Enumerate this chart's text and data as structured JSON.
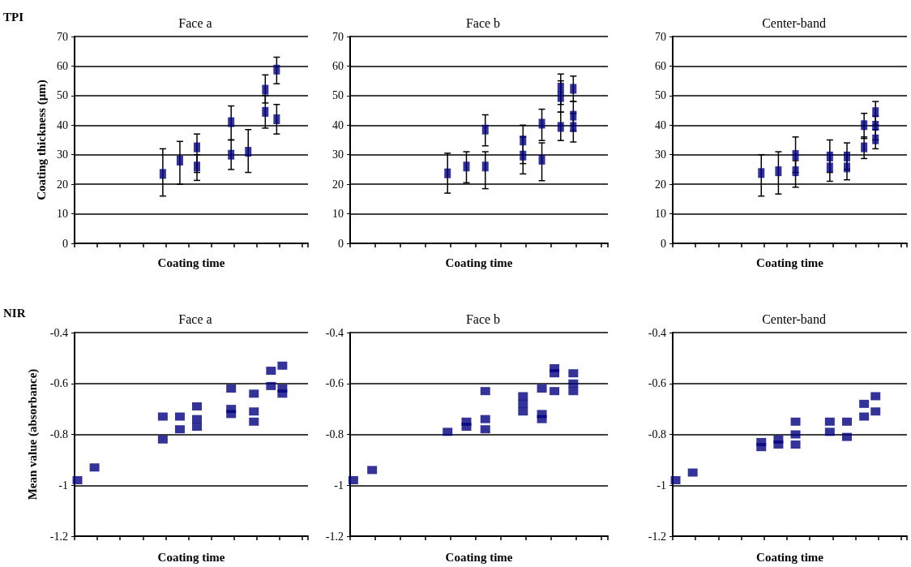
{
  "chart_data": [
    {
      "type": "scatter",
      "title": "Face a",
      "xlabel": "Coating time",
      "ylabel": "Coating thickness (µm)",
      "annotations": [
        "TPI"
      ],
      "marker": "square",
      "grid": "y",
      "ylim": [
        0,
        70
      ],
      "yticks": [
        0,
        10,
        20,
        30,
        40,
        50,
        60,
        70
      ],
      "categories": [
        null,
        null,
        null,
        null,
        null,
        null,
        null,
        null,
        null,
        null,
        null,
        null,
        null,
        null,
        null,
        null,
        null,
        null,
        null,
        null,
        null,
        null,
        null,
        null,
        null,
        null,
        null,
        null,
        null,
        null,
        null,
        null,
        null,
        null,
        null,
        null,
        null,
        null,
        null,
        null,
        null
      ],
      "series": [
        {
          "color": "#00007f",
          "values": [
            null,
            null,
            null,
            null,
            null,
            null,
            null,
            null,
            null,
            null,
            null,
            null,
            null,
            null,
            null,
            23.5,
            null,
            null,
            28,
            null,
            null,
            32.5,
            null,
            null,
            null,
            null,
            null,
            41,
            null,
            null,
            31,
            null,
            null,
            52,
            null,
            58.8,
            null,
            null,
            null,
            null,
            null
          ],
          "errors": [
            null,
            null,
            null,
            null,
            null,
            null,
            null,
            null,
            null,
            null,
            null,
            null,
            null,
            null,
            null,
            [
              16,
              32
            ],
            null,
            null,
            [
              20,
              34.5
            ],
            null,
            null,
            [
              24,
              37
            ],
            null,
            null,
            null,
            null,
            null,
            [
              35,
              46.5
            ],
            null,
            null,
            [
              24,
              38.5
            ],
            null,
            null,
            [
              47.5,
              57
            ],
            null,
            [
              54,
              63
            ],
            null,
            null,
            null,
            null,
            null
          ]
        },
        {
          "color": "#00007f",
          "values": [
            null,
            null,
            null,
            null,
            null,
            null,
            null,
            null,
            null,
            null,
            null,
            null,
            null,
            null,
            null,
            null,
            null,
            null,
            null,
            null,
            null,
            26,
            null,
            null,
            null,
            null,
            null,
            30,
            null,
            null,
            null,
            null,
            null,
            44.5,
            null,
            42,
            null,
            null,
            null,
            null,
            null
          ],
          "errors": [
            null,
            null,
            null,
            null,
            null,
            null,
            null,
            null,
            null,
            null,
            null,
            null,
            null,
            null,
            null,
            null,
            null,
            null,
            null,
            null,
            null,
            [
              21.3,
              30
            ],
            null,
            null,
            null,
            null,
            null,
            [
              25,
              35
            ],
            null,
            null,
            null,
            null,
            null,
            [
              39,
              50
            ],
            null,
            [
              37,
              47
            ],
            null,
            null,
            null,
            null,
            null
          ]
        }
      ]
    },
    {
      "type": "scatter",
      "title": "Face b",
      "xlabel": "Coating time",
      "marker": "square",
      "grid": "y",
      "ylim": [
        0,
        70
      ],
      "yticks": [
        0,
        10,
        20,
        30,
        40,
        50,
        60,
        70
      ],
      "categories": [
        null,
        null,
        null,
        null,
        null,
        null,
        null,
        null,
        null,
        null,
        null,
        null,
        null,
        null,
        null,
        null,
        null,
        null,
        null,
        null,
        null,
        null,
        null,
        null,
        null,
        null,
        null,
        null,
        null,
        null,
        null,
        null,
        null,
        null,
        null,
        null,
        null,
        null,
        null,
        null,
        null
      ],
      "series": [
        {
          "color": "#00007f",
          "values": [
            null,
            null,
            null,
            null,
            null,
            null,
            null,
            null,
            null,
            null,
            null,
            null,
            null,
            null,
            null,
            23.7,
            null,
            null,
            26,
            null,
            null,
            38.5,
            null,
            null,
            null,
            null,
            null,
            34.8,
            null,
            null,
            40.5,
            null,
            null,
            52.7,
            null,
            52.3,
            null,
            null,
            null,
            null,
            null
          ],
          "errors": [
            null,
            null,
            null,
            null,
            null,
            null,
            null,
            null,
            null,
            null,
            null,
            null,
            null,
            null,
            null,
            [
              17,
              30.5
            ],
            null,
            null,
            [
              20.5,
              31
            ],
            null,
            null,
            [
              33,
              43.5
            ],
            null,
            null,
            null,
            null,
            null,
            [
              27,
              40
            ],
            null,
            null,
            [
              34.8,
              45.4
            ],
            null,
            null,
            [
              47,
              57.3
            ],
            null,
            [
              48,
              56.6
            ],
            null,
            null,
            null,
            null,
            null
          ]
        },
        {
          "color": "#00007f",
          "values": [
            null,
            null,
            null,
            null,
            null,
            null,
            null,
            null,
            null,
            null,
            null,
            null,
            null,
            null,
            null,
            null,
            null,
            null,
            null,
            null,
            null,
            26,
            null,
            null,
            null,
            null,
            null,
            29.7,
            null,
            null,
            28.3,
            null,
            null,
            49.5,
            null,
            43.2,
            null,
            null,
            null,
            null,
            null
          ],
          "errors": [
            null,
            null,
            null,
            null,
            null,
            null,
            null,
            null,
            null,
            null,
            null,
            null,
            null,
            null,
            null,
            null,
            null,
            null,
            null,
            null,
            null,
            [
              18.5,
              31
            ],
            null,
            null,
            null,
            null,
            null,
            [
              23.5,
              36
            ],
            null,
            null,
            [
              21.2,
              34
            ],
            null,
            null,
            [
              44.4,
              55
            ],
            null,
            [
              38,
              48
            ],
            null,
            null,
            null,
            null,
            null
          ]
        },
        {
          "color": "#00007f",
          "values": [
            null,
            null,
            null,
            null,
            null,
            null,
            null,
            null,
            null,
            null,
            null,
            null,
            null,
            null,
            null,
            null,
            null,
            null,
            null,
            null,
            null,
            null,
            null,
            null,
            null,
            null,
            null,
            null,
            null,
            null,
            null,
            null,
            null,
            39.4,
            null,
            39.4,
            null,
            null,
            null,
            null,
            null
          ],
          "errors": [
            null,
            null,
            null,
            null,
            null,
            null,
            null,
            null,
            null,
            null,
            null,
            null,
            null,
            null,
            null,
            null,
            null,
            null,
            null,
            null,
            null,
            null,
            null,
            null,
            null,
            null,
            null,
            null,
            null,
            null,
            null,
            null,
            null,
            [
              34.8,
              44.4
            ],
            null,
            [
              34.3,
              44
            ],
            null,
            null,
            null,
            null,
            null
          ]
        }
      ]
    },
    {
      "type": "scatter",
      "title": "Center-band",
      "xlabel": "Coating time",
      "marker": "square",
      "grid": "y",
      "ylim": [
        0,
        70
      ],
      "yticks": [
        0,
        10,
        20,
        30,
        40,
        50,
        60,
        70
      ],
      "categories": [
        null,
        null,
        null,
        null,
        null,
        null,
        null,
        null,
        null,
        null,
        null,
        null,
        null,
        null,
        null,
        null,
        null,
        null,
        null,
        null,
        null,
        null,
        null,
        null,
        null,
        null,
        null,
        null,
        null,
        null,
        null,
        null,
        null,
        null,
        null,
        null,
        null,
        null,
        null,
        null,
        null
      ],
      "series": [
        {
          "color": "#00007f",
          "values": [
            null,
            null,
            null,
            null,
            null,
            null,
            null,
            null,
            null,
            null,
            null,
            null,
            null,
            null,
            null,
            23.8,
            null,
            null,
            24.4,
            null,
            null,
            29.9,
            null,
            null,
            null,
            null,
            null,
            29.4,
            null,
            null,
            29.4,
            null,
            null,
            40,
            null,
            44.4,
            null,
            null,
            null,
            null,
            null
          ],
          "errors": [
            null,
            null,
            null,
            null,
            null,
            null,
            null,
            null,
            null,
            null,
            null,
            null,
            null,
            null,
            null,
            [
              16,
              30
            ],
            null,
            null,
            [
              16.7,
              31
            ],
            null,
            null,
            [
              24,
              36
            ],
            null,
            null,
            null,
            null,
            null,
            [
              24,
              35
            ],
            null,
            null,
            [
              25,
              34
            ],
            null,
            null,
            [
              35.5,
              44
            ],
            null,
            [
              40,
              48
            ],
            null,
            null,
            null,
            null,
            null
          ]
        },
        {
          "color": "#00007f",
          "values": [
            null,
            null,
            null,
            null,
            null,
            null,
            null,
            null,
            null,
            null,
            null,
            null,
            null,
            null,
            null,
            null,
            null,
            null,
            null,
            null,
            null,
            24.4,
            null,
            null,
            null,
            null,
            null,
            25.7,
            null,
            null,
            25.7,
            null,
            null,
            32.5,
            null,
            39.8,
            null,
            null,
            null,
            null,
            null
          ],
          "errors": [
            null,
            null,
            null,
            null,
            null,
            null,
            null,
            null,
            null,
            null,
            null,
            null,
            null,
            null,
            null,
            null,
            null,
            null,
            null,
            null,
            null,
            [
              19,
              28
            ],
            null,
            null,
            null,
            null,
            null,
            [
              21,
              30
            ],
            null,
            null,
            [
              21.5,
              30
            ],
            null,
            null,
            [
              28.7,
              36
            ],
            null,
            [
              35,
              43
            ],
            null,
            null,
            null,
            null,
            null
          ]
        },
        {
          "color": "#00007f",
          "values": [
            null,
            null,
            null,
            null,
            null,
            null,
            null,
            null,
            null,
            null,
            null,
            null,
            null,
            null,
            null,
            null,
            null,
            null,
            null,
            null,
            null,
            null,
            null,
            null,
            null,
            null,
            null,
            null,
            null,
            null,
            null,
            null,
            null,
            null,
            null,
            35.2,
            null,
            null,
            null,
            null,
            null
          ],
          "errors": [
            null,
            null,
            null,
            null,
            null,
            null,
            null,
            null,
            null,
            null,
            null,
            null,
            null,
            null,
            null,
            null,
            null,
            null,
            null,
            null,
            null,
            null,
            null,
            null,
            null,
            null,
            null,
            null,
            null,
            null,
            null,
            null,
            null,
            null,
            null,
            [
              32,
              38.5
            ],
            null,
            null,
            null,
            null,
            null
          ]
        }
      ]
    },
    {
      "type": "scatter",
      "title": "Face a",
      "xlabel": "Coating time",
      "ylabel": "Mean value (absorbance)",
      "annotations": [
        "NIR"
      ],
      "marker": "square",
      "grid": "y",
      "ylim": [
        -1.2,
        -0.4
      ],
      "yticks": [
        -1.2,
        -1,
        -0.8,
        -0.6,
        -0.4
      ],
      "categories": [
        null,
        null,
        null,
        null,
        null,
        null,
        null,
        null,
        null,
        null,
        null,
        null,
        null,
        null,
        null,
        null,
        null,
        null,
        null,
        null,
        null,
        null,
        null,
        null,
        null,
        null,
        null,
        null,
        null,
        null,
        null,
        null,
        null,
        null,
        null,
        null,
        null,
        null,
        null,
        null,
        null
      ],
      "series": [
        {
          "color": "#00007f",
          "values": [
            -0.98,
            null,
            null,
            -0.93,
            null,
            null,
            null,
            null,
            null,
            null,
            null,
            null,
            null,
            null,
            null,
            -0.73,
            null,
            null,
            -0.73,
            null,
            null,
            -0.69,
            null,
            null,
            null,
            null,
            null,
            -0.62,
            null,
            null,
            null,
            -0.64,
            null,
            null,
            -0.55,
            null,
            -0.53,
            null,
            null,
            null,
            null
          ]
        },
        {
          "color": "#00007f",
          "values": [
            null,
            null,
            null,
            null,
            null,
            null,
            null,
            null,
            null,
            null,
            null,
            null,
            null,
            null,
            null,
            -0.82,
            null,
            null,
            -0.78,
            null,
            null,
            -0.74,
            null,
            null,
            null,
            null,
            null,
            -0.7,
            null,
            null,
            null,
            -0.71,
            null,
            null,
            -0.61,
            null,
            -0.62,
            null,
            null,
            null,
            null
          ]
        },
        {
          "color": "#00007f",
          "values": [
            null,
            null,
            null,
            null,
            null,
            null,
            null,
            null,
            null,
            null,
            null,
            null,
            null,
            null,
            null,
            null,
            null,
            null,
            null,
            null,
            null,
            -0.77,
            null,
            null,
            null,
            null,
            null,
            -0.72,
            null,
            null,
            null,
            -0.75,
            null,
            null,
            null,
            null,
            -0.64,
            null,
            null,
            null,
            null
          ]
        }
      ]
    },
    {
      "type": "scatter",
      "title": "Face b",
      "xlabel": "Coating time",
      "marker": "square",
      "grid": "y",
      "ylim": [
        -1.2,
        -0.4
      ],
      "yticks": [
        -1.2,
        -1,
        -0.8,
        -0.6,
        -0.4
      ],
      "categories": [
        null,
        null,
        null,
        null,
        null,
        null,
        null,
        null,
        null,
        null,
        null,
        null,
        null,
        null,
        null,
        null,
        null,
        null,
        null,
        null,
        null,
        null,
        null,
        null,
        null,
        null,
        null,
        null,
        null,
        null,
        null,
        null,
        null,
        null,
        null,
        null,
        null,
        null,
        null,
        null,
        null
      ],
      "series": [
        {
          "color": "#00007f",
          "values": [
            -0.98,
            null,
            null,
            -0.94,
            null,
            null,
            null,
            null,
            null,
            null,
            null,
            null,
            null,
            null,
            null,
            -0.79,
            null,
            null,
            -0.75,
            null,
            null,
            -0.63,
            null,
            null,
            null,
            null,
            null,
            -0.65,
            null,
            null,
            -0.62,
            null,
            -0.54,
            null,
            null,
            -0.56,
            null,
            null,
            null,
            null,
            null
          ]
        },
        {
          "color": "#00007f",
          "values": [
            null,
            null,
            null,
            null,
            null,
            null,
            null,
            null,
            null,
            null,
            null,
            null,
            null,
            null,
            null,
            null,
            null,
            null,
            -0.77,
            null,
            null,
            -0.74,
            null,
            null,
            null,
            null,
            null,
            -0.68,
            null,
            null,
            -0.72,
            null,
            -0.56,
            null,
            null,
            -0.6,
            null,
            null,
            null,
            null,
            null
          ]
        },
        {
          "color": "#00007f",
          "values": [
            null,
            null,
            null,
            null,
            null,
            null,
            null,
            null,
            null,
            null,
            null,
            null,
            null,
            null,
            null,
            null,
            null,
            null,
            null,
            null,
            null,
            -0.78,
            null,
            null,
            null,
            null,
            null,
            -0.71,
            null,
            null,
            -0.74,
            null,
            -0.63,
            null,
            null,
            -0.63,
            null,
            null,
            null,
            null,
            null
          ]
        }
      ]
    },
    {
      "type": "scatter",
      "title": "Center-band",
      "xlabel": "Coating time",
      "marker": "square",
      "grid": "y",
      "ylim": [
        -1.2,
        -0.4
      ],
      "yticks": [
        -1.2,
        -1,
        -0.8,
        -0.6,
        -0.4
      ],
      "categories": [
        null,
        null,
        null,
        null,
        null,
        null,
        null,
        null,
        null,
        null,
        null,
        null,
        null,
        null,
        null,
        null,
        null,
        null,
        null,
        null,
        null,
        null,
        null,
        null,
        null,
        null,
        null,
        null,
        null,
        null,
        null,
        null,
        null,
        null,
        null,
        null,
        null,
        null,
        null,
        null,
        null
      ],
      "series": [
        {
          "color": "#00007f",
          "values": [
            -0.98,
            null,
            null,
            -0.95,
            null,
            null,
            null,
            null,
            null,
            null,
            null,
            null,
            null,
            null,
            null,
            -0.83,
            null,
            null,
            -0.82,
            null,
            null,
            -0.75,
            null,
            null,
            null,
            null,
            null,
            -0.75,
            null,
            null,
            -0.75,
            null,
            null,
            -0.68,
            null,
            -0.65,
            null,
            null,
            null,
            null,
            null
          ]
        },
        {
          "color": "#00007f",
          "values": [
            null,
            null,
            null,
            null,
            null,
            null,
            null,
            null,
            null,
            null,
            null,
            null,
            null,
            null,
            null,
            -0.85,
            null,
            null,
            -0.84,
            null,
            null,
            -0.8,
            null,
            null,
            null,
            null,
            null,
            -0.79,
            null,
            null,
            -0.81,
            null,
            null,
            -0.73,
            null,
            -0.71,
            null,
            null,
            null,
            null,
            null
          ]
        },
        {
          "color": "#00007f",
          "values": [
            null,
            null,
            null,
            null,
            null,
            null,
            null,
            null,
            null,
            null,
            null,
            null,
            null,
            null,
            null,
            null,
            null,
            null,
            null,
            null,
            null,
            -0.84,
            null,
            null,
            null,
            null,
            null,
            null,
            null,
            null,
            null,
            null,
            null,
            null,
            null,
            null,
            null,
            null,
            null,
            null,
            null
          ]
        }
      ]
    }
  ]
}
